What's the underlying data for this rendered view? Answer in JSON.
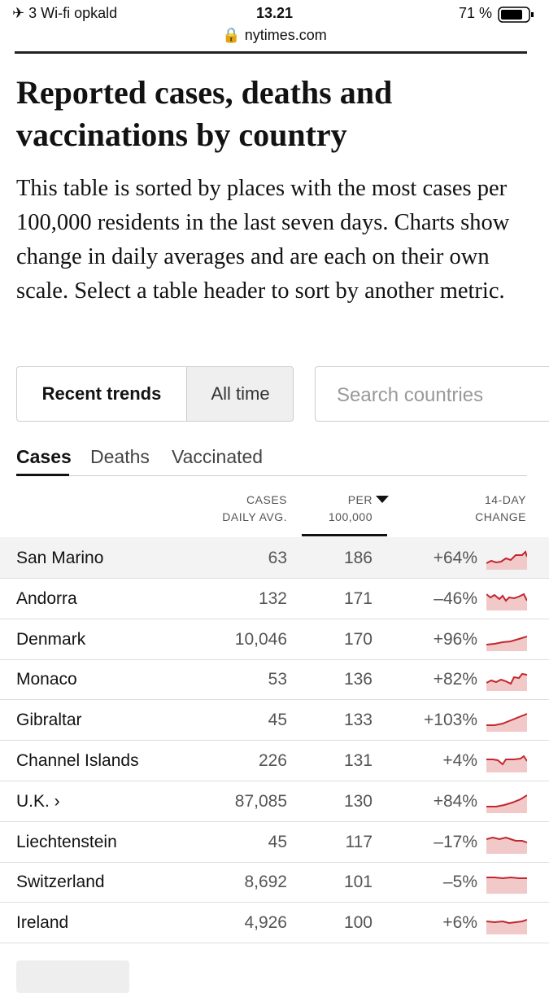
{
  "status_bar": {
    "carrier": "3 Wi-fi opkald",
    "time": "13.21",
    "battery": "71 %",
    "url": "nytimes.com"
  },
  "header": {
    "title": "Reported cases, deaths and vaccinations by country",
    "description": "This table is sorted by places with the most cases per 100,000 residents in the last seven days. Charts show change in daily averages and are each on their own scale. Select a table header to sort by another metric."
  },
  "controls": {
    "view_toggle": [
      "Recent trends",
      "All time"
    ],
    "search_placeholder": "Search countries"
  },
  "tabs": [
    "Cases",
    "Deaths",
    "Vaccinated"
  ],
  "table": {
    "columns": [
      "CASES DAILY AVG.",
      "PER 100,000",
      "14-DAY CHANGE"
    ],
    "rows": [
      [
        "San Marino",
        "63",
        "186",
        "+64%"
      ],
      [
        "Andorra",
        "132",
        "171",
        "–46%"
      ],
      [
        "Denmark",
        "10,046",
        "170",
        "+96%"
      ],
      [
        "Monaco",
        "53",
        "136",
        "+82%"
      ],
      [
        "Gibraltar",
        "45",
        "133",
        "+103%"
      ],
      [
        "Channel Islands",
        "226",
        "131",
        "+4%"
      ],
      [
        "U.K. ›",
        "87,085",
        "130",
        "+84%"
      ],
      [
        "Liechtenstein",
        "45",
        "117",
        "–17%"
      ],
      [
        "Switzerland",
        "8,692",
        "101",
        "–5%"
      ],
      [
        "Ireland",
        "4,926",
        "100",
        "+6%"
      ]
    ]
  }
}
